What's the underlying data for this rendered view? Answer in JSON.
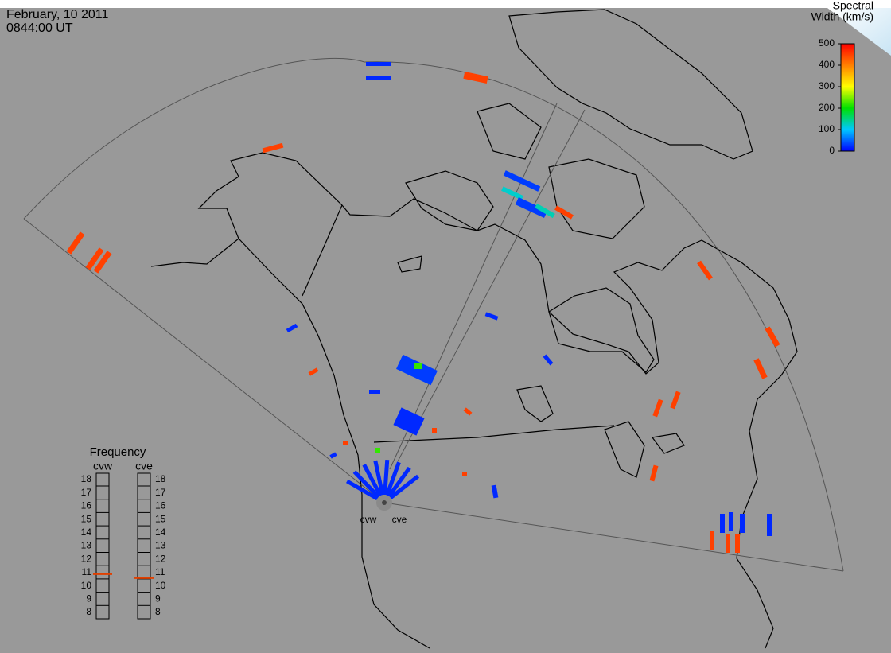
{
  "header": {
    "date": "February, 10 2011",
    "time": "0844:00 UT"
  },
  "colorbar": {
    "title_lines": [
      "Spectral",
      "Width (km/s)"
    ],
    "lim": [
      0,
      500
    ],
    "ticks": [
      0,
      100,
      200,
      300,
      400,
      500
    ]
  },
  "frequency": {
    "title": "Frequency",
    "lim": [
      8,
      18
    ],
    "ticks": [
      8,
      9,
      10,
      11,
      12,
      13,
      14,
      15,
      16,
      17,
      18
    ],
    "radars": [
      {
        "name": "cvw",
        "value": 10.9
      },
      {
        "name": "cve",
        "value": 10.6
      }
    ]
  },
  "stations": [
    "cvw",
    "cve"
  ],
  "echoes": {
    "values": [
      20,
      20,
      450,
      450,
      450,
      450,
      450,
      30,
      120,
      30,
      130,
      450,
      450,
      20,
      20,
      20,
      450,
      450,
      450,
      450,
      450,
      30,
      220,
      20,
      450,
      450,
      20,
      20,
      20,
      20,
      450,
      450,
      450,
      20,
      20,
      450,
      450,
      220,
      450,
      20,
      20,
      20,
      20,
      20,
      20,
      20,
      20,
      20
    ]
  }
}
